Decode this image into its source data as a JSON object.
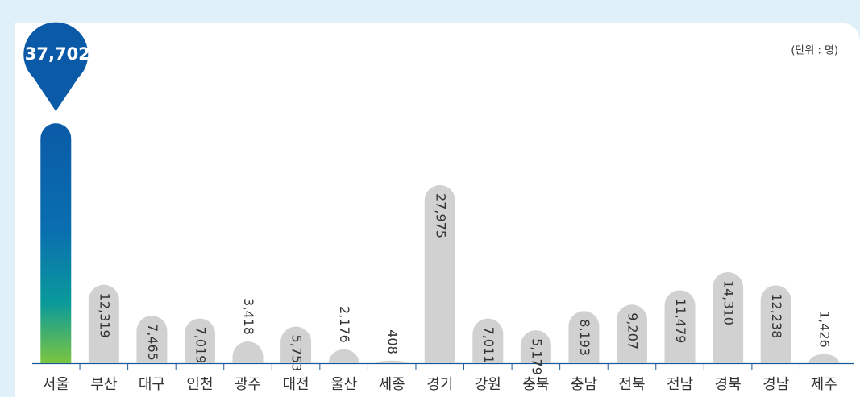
{
  "chart_data": {
    "type": "bar",
    "unit": "(단위 : 명)",
    "categories": [
      "서울",
      "부산",
      "대구",
      "인천",
      "광주",
      "대전",
      "울산",
      "세종",
      "경기",
      "강원",
      "충북",
      "충남",
      "전북",
      "전남",
      "경북",
      "경남",
      "제주"
    ],
    "values": [
      37702,
      12319,
      7465,
      7019,
      3418,
      5753,
      2176,
      408,
      27975,
      7011,
      5179,
      8193,
      9207,
      11479,
      14310,
      12238,
      1426
    ],
    "value_labels": [
      "37,702",
      "12,319",
      "7,465",
      "7,019",
      "3,418",
      "5,753",
      "2,176",
      "408",
      "27,975",
      "7,011",
      "5,179",
      "8,193",
      "9,207",
      "11,479",
      "14,310",
      "12,238",
      "1,426"
    ],
    "color": "#d1d1d1",
    "highlight": "서울",
    "highlight_color": "#0b5aa7",
    "ylim": [
      0,
      40000
    ]
  }
}
